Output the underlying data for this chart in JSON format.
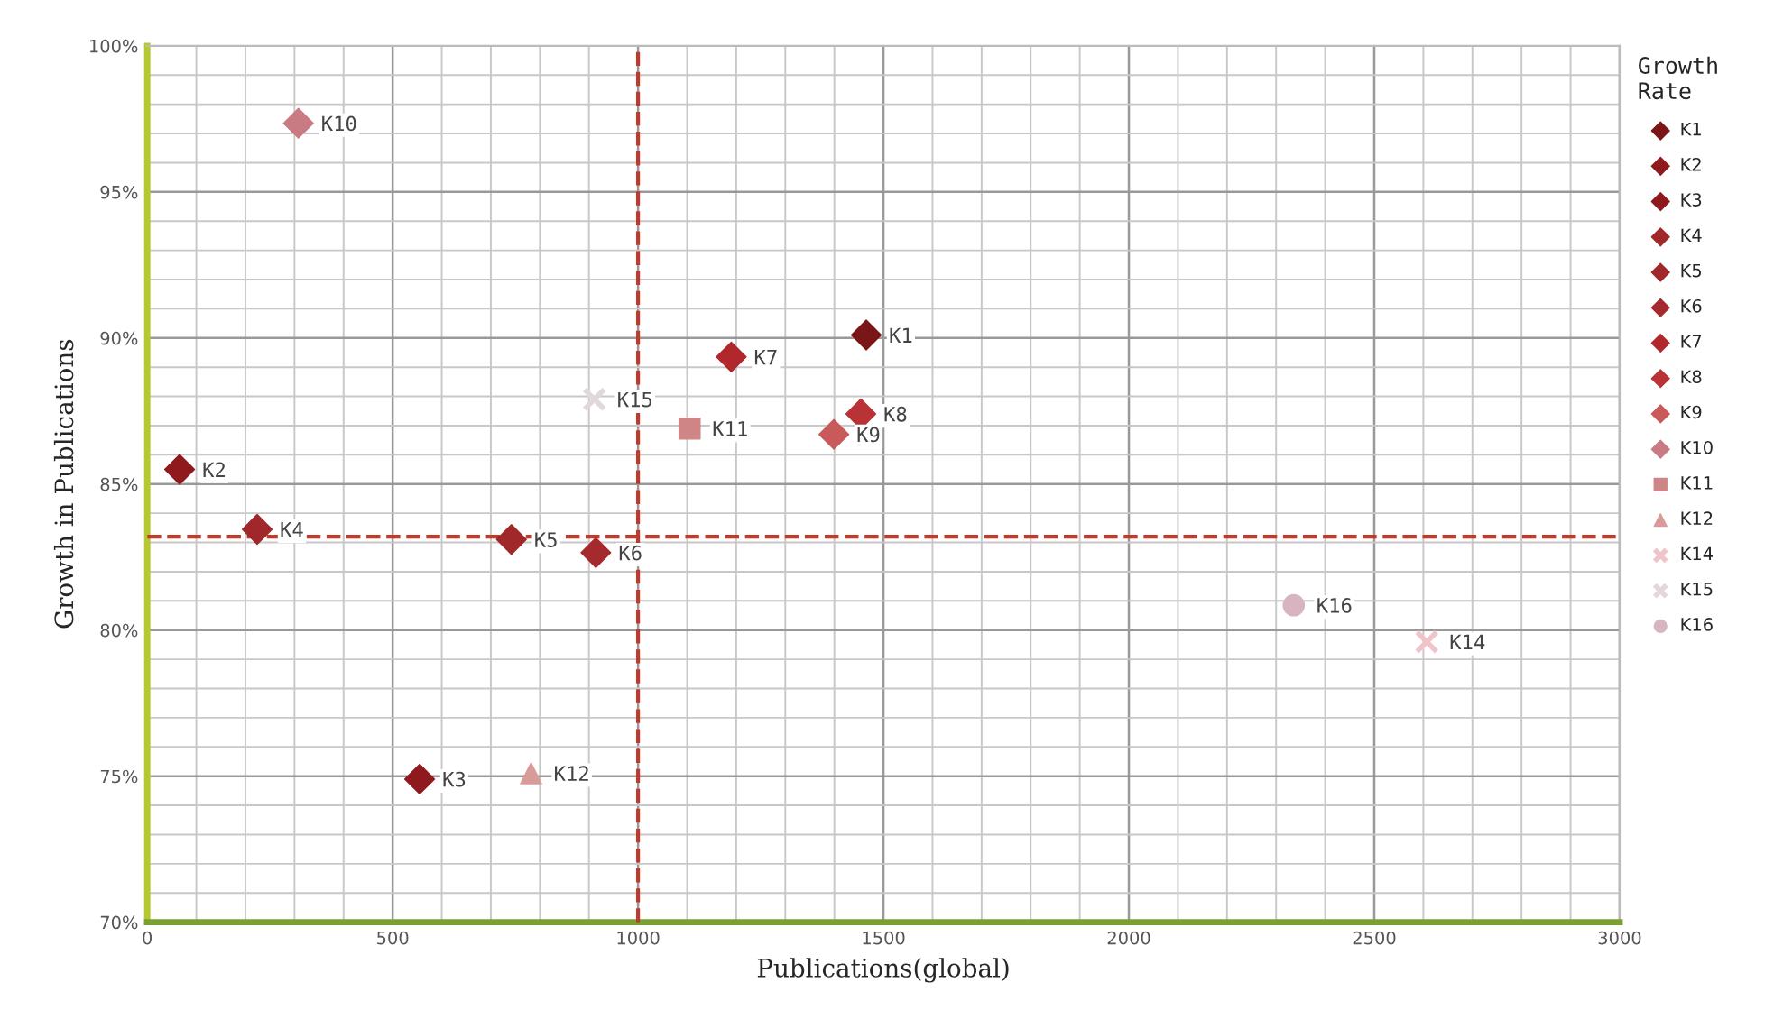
{
  "chart_data": {
    "type": "scatter",
    "xlabel": "Publications(global)",
    "ylabel": "Growth in Publications",
    "legend_title": "Growth\nRate",
    "xlim": [
      0,
      3000
    ],
    "xticks": [
      0,
      500,
      1000,
      1500,
      2000,
      2500,
      3000
    ],
    "ylim": [
      70,
      100
    ],
    "yticks": [
      {
        "value": 70,
        "label": "70%"
      },
      {
        "value": 75,
        "label": "75%"
      },
      {
        "value": 80,
        "label": "80%"
      },
      {
        "value": 85,
        "label": "85%"
      },
      {
        "value": 90,
        "label": "90%"
      },
      {
        "value": 95,
        "label": "95%"
      },
      {
        "value": 100,
        "label": "100%"
      }
    ],
    "grid": true,
    "legend": "right",
    "ref_lines": [
      {
        "axis": "y",
        "value": 83.2,
        "color": "#c0392b",
        "line_style": "dashed"
      },
      {
        "axis": "x",
        "value": 1000,
        "color": "#c0392b",
        "line_style": "dashed"
      }
    ],
    "series": [
      {
        "name": "K1",
        "color": "#7a1518",
        "marker": "diamond",
        "x": [
          1465
        ],
        "values": [
          90.1
        ]
      },
      {
        "name": "K2",
        "color": "#8e1a1e",
        "marker": "diamond",
        "x": [
          66
        ],
        "values": [
          85.5
        ]
      },
      {
        "name": "K3",
        "color": "#8e1a1e",
        "marker": "diamond",
        "x": [
          555
        ],
        "values": [
          74.9
        ]
      },
      {
        "name": "K4",
        "color": "#a0282a",
        "marker": "diamond",
        "x": [
          224
        ],
        "values": [
          83.45
        ]
      },
      {
        "name": "K5",
        "color": "#a0282a",
        "marker": "diamond",
        "x": [
          742
        ],
        "values": [
          83.1
        ]
      },
      {
        "name": "K6",
        "color": "#a52a2d",
        "marker": "diamond",
        "x": [
          914
        ],
        "values": [
          82.65
        ]
      },
      {
        "name": "K7",
        "color": "#b0282c",
        "marker": "diamond",
        "x": [
          1190
        ],
        "values": [
          89.35
        ]
      },
      {
        "name": "K8",
        "color": "#b83236",
        "marker": "diamond",
        "x": [
          1454
        ],
        "values": [
          87.4
        ]
      },
      {
        "name": "K9",
        "color": "#c85a5c",
        "marker": "diamond",
        "x": [
          1399
        ],
        "values": [
          86.7
        ]
      },
      {
        "name": "K10",
        "color": "#c97a82",
        "marker": "diamond",
        "x": [
          308
        ],
        "values": [
          97.35
        ]
      },
      {
        "name": "K11",
        "color": "#cf8486",
        "marker": "square",
        "x": [
          1105
        ],
        "values": [
          86.9
        ]
      },
      {
        "name": "K12",
        "color": "#d99a9a",
        "marker": "triangle",
        "x": [
          782
        ],
        "values": [
          75.1
        ]
      },
      {
        "name": "K14",
        "color": "#f0c4c8",
        "marker": "cross",
        "x": [
          2607
        ],
        "values": [
          79.6
        ]
      },
      {
        "name": "K15",
        "color": "#e2d8dc",
        "marker": "cross",
        "x": [
          911
        ],
        "values": [
          87.9
        ]
      },
      {
        "name": "K16",
        "color": "#d8b4c0",
        "marker": "circle",
        "x": [
          2336
        ],
        "values": [
          80.85
        ]
      }
    ]
  }
}
